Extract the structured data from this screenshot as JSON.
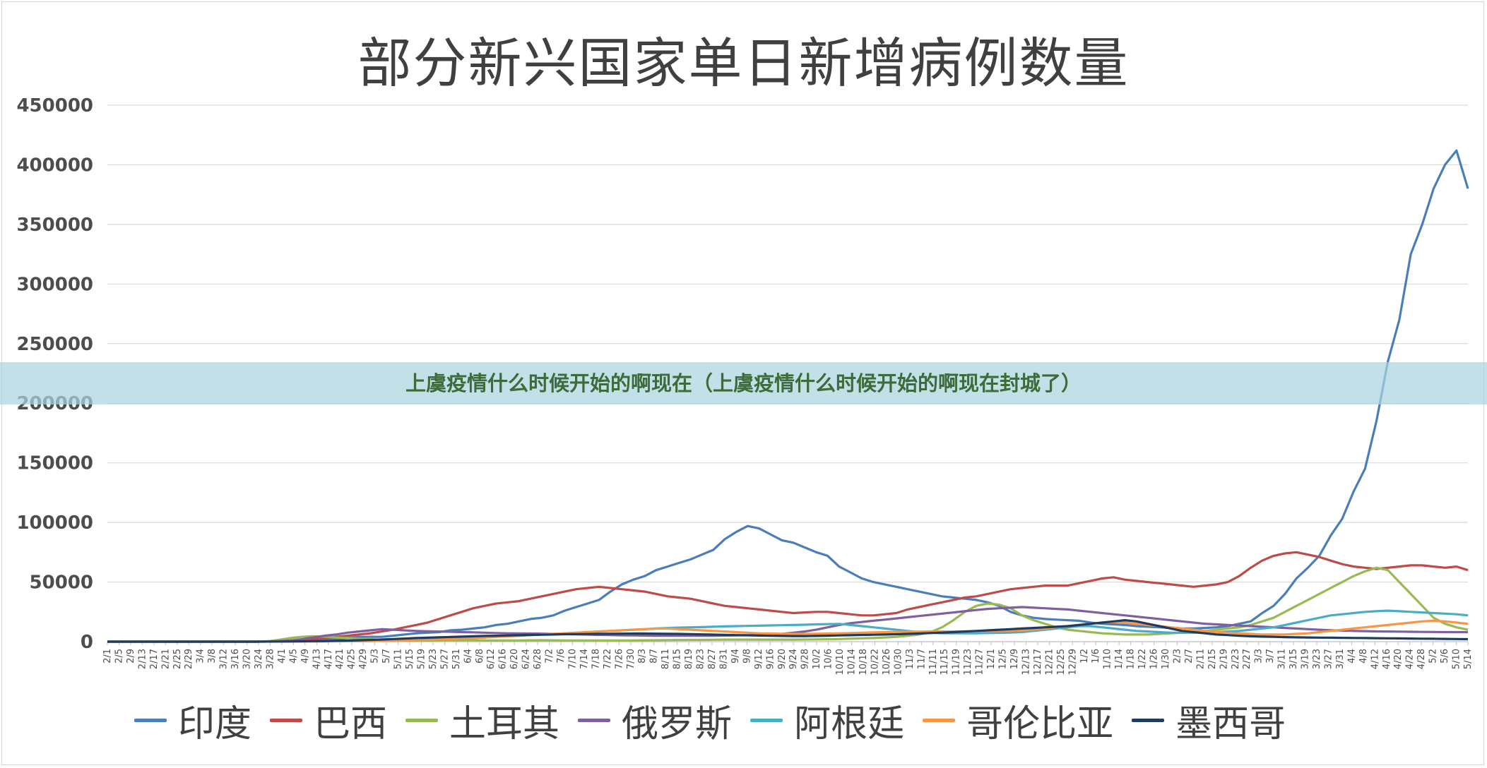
{
  "chart_data": {
    "type": "line",
    "title": "部分新兴国家单日新增病例数量",
    "ylim": [
      0,
      450000
    ],
    "yticks": [
      0,
      50000,
      100000,
      150000,
      200000,
      250000,
      300000,
      350000,
      400000,
      450000
    ],
    "ytick_labels": [
      "0",
      "50000",
      "100000",
      "150000",
      "200000",
      "250000",
      "300000",
      "350000",
      "400000",
      "450000"
    ],
    "x_tick_labels": [
      "2/1",
      "2/5",
      "2/9",
      "2/13",
      "2/17",
      "2/21",
      "2/25",
      "2/29",
      "3/4",
      "3/8",
      "3/12",
      "3/16",
      "3/20",
      "3/24",
      "3/28",
      "4/1",
      "4/5",
      "4/9",
      "4/13",
      "4/17",
      "4/21",
      "4/25",
      "4/29",
      "5/3",
      "5/7",
      "5/11",
      "5/15",
      "5/19",
      "5/23",
      "5/27",
      "5/31",
      "6/4",
      "6/8",
      "6/12",
      "6/16",
      "6/20",
      "6/24",
      "6/28",
      "7/2",
      "7/6",
      "7/10",
      "7/14",
      "7/18",
      "7/22",
      "7/26",
      "7/30",
      "8/3",
      "8/7",
      "8/11",
      "8/15",
      "8/19",
      "8/23",
      "8/27",
      "8/31",
      "9/4",
      "9/8",
      "9/12",
      "9/16",
      "9/20",
      "9/24",
      "9/28",
      "10/2",
      "10/6",
      "10/10",
      "10/14",
      "10/18",
      "10/22",
      "10/26",
      "10/30",
      "11/3",
      "11/7",
      "11/11",
      "11/15",
      "11/19",
      "11/23",
      "11/27",
      "12/1",
      "12/5",
      "12/9",
      "12/13",
      "12/17",
      "12/21",
      "12/25",
      "12/29",
      "1/2",
      "1/6",
      "1/10",
      "1/14",
      "1/18",
      "1/22",
      "1/26",
      "1/30",
      "2/3",
      "2/7",
      "2/11",
      "2/15",
      "2/19",
      "2/23",
      "2/27",
      "3/3",
      "3/7",
      "3/11",
      "3/15",
      "3/19",
      "3/23",
      "3/27",
      "3/31",
      "4/4",
      "4/8",
      "4/12",
      "4/16",
      "4/20",
      "4/24",
      "4/28",
      "5/2",
      "5/6",
      "5/10",
      "5/14"
    ],
    "series_points": 120,
    "series": [
      {
        "name": "印度",
        "color": "#4a7ebb",
        "values": [
          0,
          0,
          0,
          0,
          0,
          0,
          0,
          0,
          0,
          0,
          0,
          0,
          0,
          0,
          300,
          600,
          900,
          1500,
          1600,
          1500,
          2000,
          3000,
          4000,
          4000,
          4000,
          5000,
          6000,
          7000,
          7500,
          8000,
          9500,
          10000,
          11000,
          12000,
          14000,
          15000,
          17000,
          19000,
          20000,
          22000,
          26000,
          29000,
          32000,
          35000,
          42000,
          48000,
          52000,
          55000,
          60000,
          63000,
          66000,
          69000,
          73000,
          77000,
          86000,
          92000,
          97000,
          95000,
          90000,
          85000,
          83000,
          79000,
          75000,
          72000,
          63000,
          58000,
          53000,
          50000,
          48000,
          46000,
          44000,
          42000,
          40000,
          38000,
          37000,
          36000,
          35000,
          33000,
          30000,
          25000,
          22000,
          20000,
          19000,
          18500,
          18000,
          17500,
          16000,
          15000,
          14500,
          14000,
          13000,
          12500,
          12000,
          11500,
          11000,
          11000,
          11500,
          12000,
          13000,
          15000,
          17000,
          24000,
          30000,
          40000,
          53000,
          62000,
          72000,
          89000,
          103000,
          126000,
          145000,
          185000,
          235000,
          270000,
          325000,
          350000,
          380000,
          400000,
          412000,
          380000
        ]
      },
      {
        "name": "巴西",
        "color": "#be4b48",
        "values": [
          0,
          0,
          0,
          0,
          0,
          0,
          0,
          0,
          0,
          0,
          0,
          0,
          0,
          0,
          100,
          500,
          1000,
          1500,
          2000,
          3000,
          4000,
          5000,
          6000,
          7000,
          8500,
          10000,
          12000,
          14000,
          16000,
          19000,
          22000,
          25000,
          28000,
          30000,
          32000,
          33000,
          34000,
          36000,
          38000,
          40000,
          42000,
          44000,
          45000,
          46000,
          45000,
          44000,
          43000,
          42000,
          40000,
          38000,
          37000,
          36000,
          34000,
          32000,
          30000,
          29000,
          28000,
          27000,
          26000,
          25000,
          24000,
          24500,
          25000,
          25000,
          24000,
          23000,
          22000,
          22000,
          23000,
          24000,
          27000,
          29000,
          31000,
          33000,
          35000,
          37000,
          38000,
          40000,
          42000,
          44000,
          45000,
          46000,
          47000,
          47000,
          47000,
          49000,
          51000,
          53000,
          54000,
          52000,
          51000,
          50000,
          49000,
          48000,
          47000,
          46000,
          47000,
          48000,
          50000,
          55000,
          62000,
          68000,
          72000,
          74000,
          75000,
          73000,
          71000,
          68000,
          65000,
          63000,
          62000,
          61000,
          62000,
          63000,
          64000,
          64000,
          63000,
          62000,
          63000,
          60000
        ]
      },
      {
        "name": "土耳其",
        "color": "#98b954",
        "values": [
          0,
          0,
          0,
          0,
          0,
          0,
          0,
          0,
          0,
          0,
          0,
          0,
          0,
          0,
          300,
          1500,
          3000,
          4000,
          4500,
          4200,
          3500,
          3000,
          2500,
          2000,
          1500,
          1200,
          1000,
          900,
          900,
          1000,
          1100,
          1200,
          1100,
          1000,
          1000,
          1000,
          1000,
          1100,
          1200,
          1100,
          1000,
          1000,
          1000,
          1000,
          1000,
          1000,
          1000,
          1100,
          1200,
          1300,
          1400,
          1500,
          1500,
          1600,
          1700,
          1700,
          1700,
          1700,
          1700,
          1700,
          1700,
          1800,
          1900,
          2000,
          2200,
          2500,
          2800,
          3000,
          3500,
          4000,
          5000,
          6000,
          8000,
          12000,
          18000,
          25000,
          30000,
          32000,
          31000,
          28000,
          22000,
          18000,
          15000,
          12000,
          10000,
          9000,
          8000,
          7000,
          6500,
          6000,
          6000,
          6000,
          6500,
          7000,
          7500,
          8000,
          9000,
          10000,
          11000,
          12000,
          14000,
          17000,
          20000,
          25000,
          30000,
          35000,
          40000,
          45000,
          50000,
          55000,
          59000,
          62000,
          60000,
          50000,
          40000,
          30000,
          20000,
          15000,
          12000,
          10000
        ]
      },
      {
        "name": "俄罗斯",
        "color": "#7d60a0",
        "values": [
          0,
          0,
          0,
          0,
          0,
          0,
          0,
          0,
          0,
          0,
          0,
          0,
          0,
          0,
          100,
          500,
          1000,
          2000,
          3500,
          5000,
          6000,
          7500,
          8500,
          9500,
          10500,
          10000,
          9500,
          9000,
          8700,
          8500,
          8300,
          8000,
          7800,
          7500,
          7200,
          7000,
          6900,
          6800,
          6700,
          6500,
          6300,
          6100,
          5900,
          5700,
          5500,
          5300,
          5200,
          5100,
          5000,
          5000,
          4900,
          4900,
          4900,
          5000,
          5100,
          5200,
          5400,
          5600,
          6000,
          6500,
          7500,
          8500,
          10000,
          12000,
          14000,
          15500,
          16500,
          17500,
          18500,
          19500,
          20500,
          21500,
          22500,
          23500,
          24500,
          25500,
          26500,
          27500,
          28000,
          28500,
          29000,
          28500,
          28000,
          27500,
          27000,
          26000,
          25000,
          24000,
          23000,
          22000,
          21000,
          20000,
          19000,
          18000,
          17000,
          16000,
          15000,
          14500,
          14000,
          13500,
          13000,
          12500,
          12000,
          11500,
          11000,
          10500,
          10000,
          9600,
          9300,
          9000,
          8800,
          8600,
          8500,
          8400,
          8300,
          8200,
          8100,
          8000,
          8000,
          8000
        ]
      },
      {
        "name": "阿根廷",
        "color": "#4aacc5",
        "values": [
          0,
          0,
          0,
          0,
          0,
          0,
          0,
          0,
          0,
          0,
          0,
          0,
          0,
          0,
          50,
          100,
          150,
          200,
          250,
          300,
          350,
          400,
          500,
          600,
          700,
          800,
          1000,
          1200,
          1500,
          1800,
          2200,
          2600,
          3000,
          3500,
          4000,
          4500,
          5000,
          5500,
          6000,
          6500,
          7000,
          7500,
          8000,
          8500,
          9000,
          9500,
          10000,
          10500,
          11000,
          11500,
          11800,
          12000,
          12200,
          12500,
          12800,
          13000,
          13200,
          13400,
          13600,
          13800,
          14000,
          14200,
          14500,
          14700,
          14900,
          14000,
          13000,
          12000,
          11000,
          10000,
          9000,
          8000,
          7500,
          7000,
          7000,
          7000,
          7000,
          7200,
          7400,
          7600,
          8000,
          9000,
          10000,
          11000,
          12000,
          13000,
          13000,
          12000,
          11000,
          10000,
          9000,
          8500,
          8000,
          7500,
          7500,
          7500,
          7500,
          8000,
          8500,
          9000,
          10000,
          11000,
          12000,
          14000,
          16000,
          18000,
          20000,
          22000,
          23000,
          24000,
          25000,
          25500,
          26000,
          25500,
          25000,
          24500,
          24000,
          23500,
          23000,
          22000
        ]
      },
      {
        "name": "哥伦比亚",
        "color": "#f79646",
        "values": [
          0,
          0,
          0,
          0,
          0,
          0,
          0,
          0,
          0,
          0,
          0,
          0,
          0,
          0,
          50,
          100,
          150,
          200,
          250,
          300,
          350,
          400,
          500,
          600,
          700,
          800,
          1000,
          1200,
          1500,
          1800,
          2200,
          2600,
          3000,
          3500,
          4000,
          4500,
          5000,
          5500,
          6000,
          6500,
          7000,
          7500,
          8000,
          8500,
          9000,
          9500,
          10000,
          10500,
          11000,
          11000,
          10500,
          10000,
          9500,
          9000,
          8500,
          8000,
          7500,
          7000,
          6800,
          6600,
          6500,
          6500,
          6600,
          6800,
          7000,
          7200,
          7500,
          7800,
          8000,
          8200,
          8300,
          8400,
          8500,
          8500,
          8500,
          8600,
          8700,
          8800,
          9000,
          9200,
          9500,
          10000,
          11000,
          12000,
          13000,
          14000,
          15000,
          16000,
          16500,
          16000,
          15000,
          14000,
          13000,
          12000,
          11000,
          10000,
          9000,
          8000,
          7500,
          7000,
          6500,
          6000,
          6000,
          6000,
          6500,
          7000,
          8000,
          9000,
          10000,
          11000,
          12000,
          13000,
          14000,
          15000,
          16000,
          17000,
          17500,
          17000,
          16000,
          15000
        ]
      },
      {
        "name": "墨西哥",
        "color": "#1f3b5e",
        "values": [
          0,
          0,
          0,
          0,
          0,
          0,
          0,
          0,
          0,
          0,
          0,
          0,
          0,
          0,
          50,
          100,
          200,
          300,
          400,
          500,
          700,
          900,
          1200,
          1500,
          1800,
          2200,
          2600,
          3000,
          3300,
          3600,
          3900,
          4200,
          4500,
          4800,
          5000,
          5200,
          5400,
          5600,
          5800,
          6000,
          6200,
          6300,
          6400,
          6500,
          6600,
          6700,
          6800,
          6800,
          6700,
          6600,
          6500,
          6300,
          6100,
          5900,
          5700,
          5500,
          5300,
          5100,
          4900,
          4800,
          4700,
          4700,
          4800,
          5000,
          5200,
          5400,
          5600,
          5800,
          6000,
          6200,
          6500,
          6800,
          7200,
          7600,
          8000,
          8500,
          9000,
          9500,
          10000,
          10500,
          11000,
          11500,
          12000,
          12500,
          13000,
          14000,
          15000,
          16000,
          17000,
          18000,
          17000,
          15000,
          13000,
          11000,
          9000,
          8000,
          7000,
          6000,
          5500,
          5000,
          4500,
          4200,
          4000,
          3800,
          3600,
          3500,
          3400,
          3300,
          3200,
          3100,
          3000,
          2900,
          2800,
          2700,
          2600,
          2500,
          2400,
          2300,
          2200,
          2100
        ]
      }
    ]
  },
  "banner": {
    "text": "上虞疫情什么时候开始的啊现在（上虞疫情什么时候开始的啊现在封城了）"
  }
}
